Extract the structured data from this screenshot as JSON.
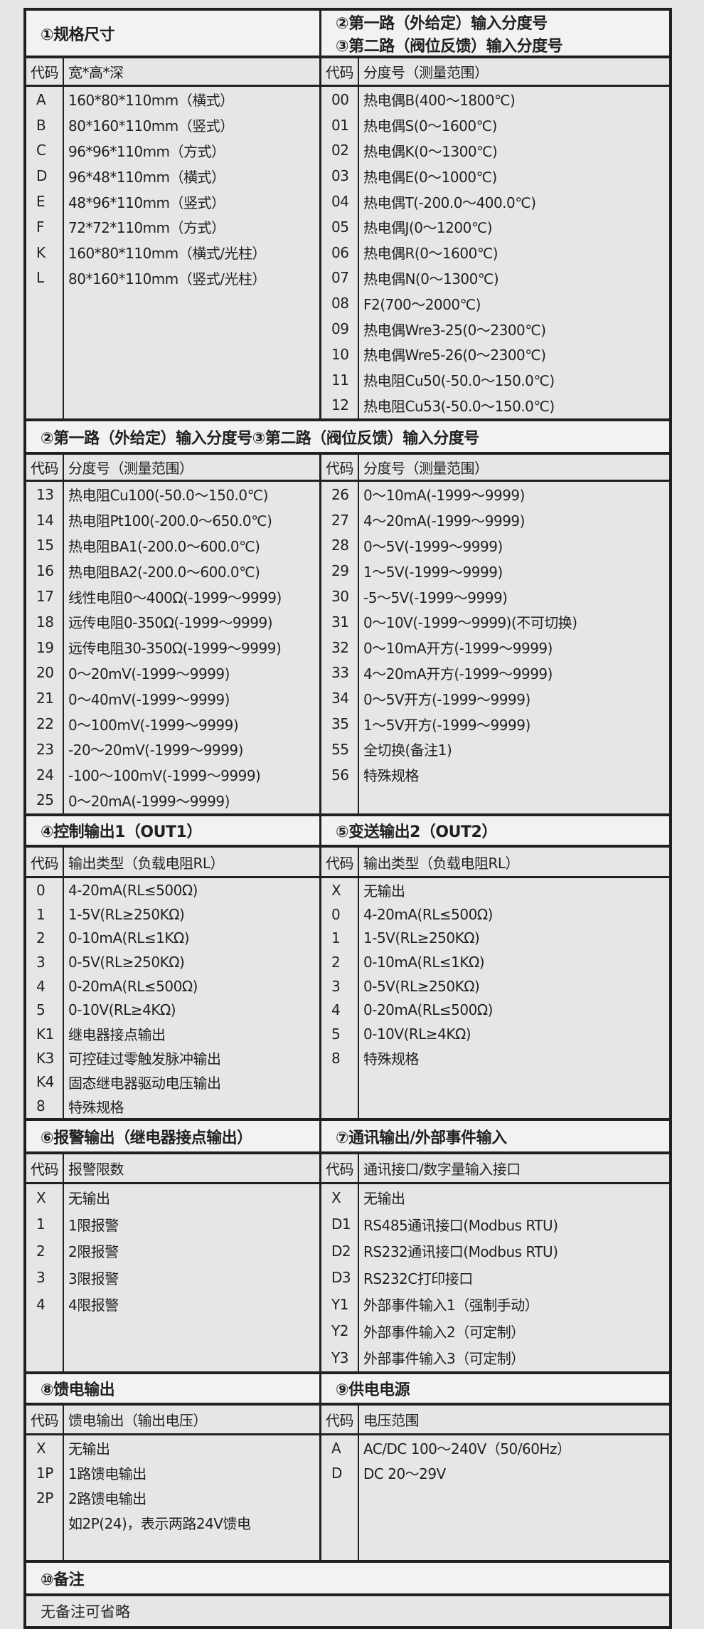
{
  "colors": {
    "background": "#e7e6e7",
    "header_bg": "#f2f2f2",
    "border": "#231f20",
    "text": "#231f20"
  },
  "groups": [
    {
      "left": {
        "title": [
          "①规格尺寸"
        ],
        "code_header": "代码",
        "desc_header": "宽*高*深",
        "rows": [
          [
            "A",
            "160*80*110mm（横式）"
          ],
          [
            "B",
            "80*160*110mm（竖式）"
          ],
          [
            "C",
            "96*96*110mm（方式）"
          ],
          [
            "D",
            "96*48*110mm（横式）"
          ],
          [
            "E",
            "48*96*110mm（竖式）"
          ],
          [
            "F",
            "72*72*110mm（方式）"
          ],
          [
            "K",
            "160*80*110mm（横式/光柱）"
          ],
          [
            "L",
            "80*160*110mm（竖式/光柱）"
          ]
        ]
      },
      "right": {
        "title": [
          "②第一路（外给定）输入分度号",
          "③第二路（阀位反馈）输入分度号"
        ],
        "code_header": "代码",
        "desc_header": "分度号（测量范围）",
        "rows": [
          [
            "00",
            "热电偶B(400～1800℃)"
          ],
          [
            "01",
            "热电偶S(0～1600℃)"
          ],
          [
            "02",
            "热电偶K(0～1300℃)"
          ],
          [
            "03",
            "热电偶E(0～1000℃)"
          ],
          [
            "04",
            "热电偶T(-200.0～400.0℃)"
          ],
          [
            "05",
            "热电偶J(0～1200℃)"
          ],
          [
            "06",
            "热电偶R(0～1600℃)"
          ],
          [
            "07",
            "热电偶N(0～1300℃)"
          ],
          [
            "08",
            "F2(700～2000℃)"
          ],
          [
            "09",
            "热电偶Wre3-25(0～2300℃)"
          ],
          [
            "10",
            "热电偶Wre5-26(0～2300℃)"
          ],
          [
            "11",
            "热电阻Cu50(-50.0～150.0℃)"
          ],
          [
            "12",
            "热电阻Cu53(-50.0～150.0℃)"
          ]
        ]
      }
    },
    {
      "title": "②第一路（外给定）输入分度号③第二路（阀位反馈）输入分度号",
      "left": {
        "code_header": "代码",
        "desc_header": "分度号（测量范围）",
        "rows": [
          [
            "13",
            "热电阻Cu100(-50.0～150.0℃)"
          ],
          [
            "14",
            "热电阻Pt100(-200.0～650.0℃)"
          ],
          [
            "15",
            "热电阻BA1(-200.0～600.0℃)"
          ],
          [
            "16",
            "热电阻BA2(-200.0～600.0℃)"
          ],
          [
            "17",
            "线性电阻0～400Ω(-1999～9999)"
          ],
          [
            "18",
            "远传电阻0-350Ω(-1999～9999)"
          ],
          [
            "19",
            "远传电阻30-350Ω(-1999～9999)"
          ],
          [
            "20",
            "0～20mV(-1999～9999)"
          ],
          [
            "21",
            "0～40mV(-1999～9999)"
          ],
          [
            "22",
            "0～100mV(-1999～9999)"
          ],
          [
            "23",
            "-20～20mV(-1999～9999)"
          ],
          [
            "24",
            "-100～100mV(-1999～9999)"
          ],
          [
            "25",
            "0～20mA(-1999～9999)"
          ]
        ]
      },
      "right": {
        "code_header": "代码",
        "desc_header": "分度号（测量范围）",
        "rows": [
          [
            "26",
            "0～10mA(-1999～9999)"
          ],
          [
            "27",
            "4～20mA(-1999～9999)"
          ],
          [
            "28",
            "0～5V(-1999～9999)"
          ],
          [
            "29",
            "1～5V(-1999～9999)"
          ],
          [
            "30",
            "-5～5V(-1999～9999)"
          ],
          [
            "31",
            "0～10V(-1999～9999)(不可切换)"
          ],
          [
            "32",
            "0～10mA开方(-1999～9999)"
          ],
          [
            "33",
            "4～20mA开方(-1999～9999)"
          ],
          [
            "34",
            "0～5V开方(-1999～9999)"
          ],
          [
            "35",
            "1～5V开方(-1999～9999)"
          ],
          [
            "55",
            "全切换(备注1)"
          ],
          [
            "56",
            "特殊规格"
          ]
        ]
      }
    },
    {
      "left": {
        "title": [
          "④控制输出1（OUT1）"
        ],
        "code_header": "代码",
        "desc_header": "输出类型（负载电阻RL）",
        "rows": [
          [
            "0",
            "4-20mA(RL≤500Ω)"
          ],
          [
            "1",
            "1-5V(RL≥250KΩ)"
          ],
          [
            "2",
            "0-10mA(RL≤1KΩ)"
          ],
          [
            "3",
            "0-5V(RL≥250KΩ)"
          ],
          [
            "4",
            "0-20mA(RL≤500Ω)"
          ],
          [
            "5",
            "0-10V(RL≥4KΩ)"
          ],
          [
            "K1",
            "继电器接点输出"
          ],
          [
            "K3",
            "可控硅过零触发脉冲输出"
          ],
          [
            "K4",
            "固态继电器驱动电压输出"
          ],
          [
            "8",
            "特殊规格"
          ]
        ]
      },
      "right": {
        "title": [
          "⑤变送输出2（OUT2）"
        ],
        "code_header": "代码",
        "desc_header": "输出类型（负载电阻RL）",
        "rows": [
          [
            "X",
            "无输出"
          ],
          [
            "0",
            "4-20mA(RL≤500Ω)"
          ],
          [
            "1",
            "1-5V(RL≥250KΩ)"
          ],
          [
            "2",
            "0-10mA(RL≤1KΩ)"
          ],
          [
            "3",
            "0-5V(RL≥250KΩ)"
          ],
          [
            "4",
            "0-20mA(RL≤500Ω)"
          ],
          [
            "5",
            "0-10V(RL≥4KΩ)"
          ],
          [
            "8",
            "特殊规格"
          ]
        ]
      }
    },
    {
      "left": {
        "title": [
          "⑥报警输出（继电器接点输出）"
        ],
        "code_header": "代码",
        "desc_header": "报警限数",
        "rows": [
          [
            "X",
            "无输出"
          ],
          [
            "1",
            "1限报警"
          ],
          [
            "2",
            "2限报警"
          ],
          [
            "3",
            "3限报警"
          ],
          [
            "4",
            "4限报警"
          ]
        ]
      },
      "right": {
        "title": [
          "⑦通讯输出/外部事件输入"
        ],
        "code_header": "代码",
        "desc_header": "通讯接口/数字量输入接口",
        "rows": [
          [
            "X",
            "无输出"
          ],
          [
            "D1",
            "RS485通讯接口(Modbus RTU)"
          ],
          [
            "D2",
            "RS232通讯接口(Modbus RTU)"
          ],
          [
            "D3",
            "RS232C打印接口"
          ],
          [
            "Y1",
            "外部事件输入1（强制手动）"
          ],
          [
            "Y2",
            "外部事件输入2（可定制）"
          ],
          [
            "Y3",
            "外部事件输入3（可定制）"
          ]
        ]
      }
    },
    {
      "left": {
        "title": [
          "⑧馈电输出"
        ],
        "code_header": "代码",
        "desc_header": "馈电输出（输出电压）",
        "rows": [
          [
            "X",
            "无输出"
          ],
          [
            "1P",
            "1路馈电输出"
          ],
          [
            "2P",
            "2路馈电输出"
          ],
          [
            "",
            "如2P(24)，表示两路24V馈电"
          ]
        ]
      },
      "right": {
        "title": [
          "⑨供电电源"
        ],
        "code_header": "代码",
        "desc_header": "电压范围",
        "rows": [
          [
            "A",
            "AC/DC 100～240V（50/60Hz）"
          ],
          [
            "D",
            "DC 20～29V"
          ]
        ]
      }
    },
    {
      "title": "⑩备注",
      "note": "无备注可省略"
    }
  ]
}
